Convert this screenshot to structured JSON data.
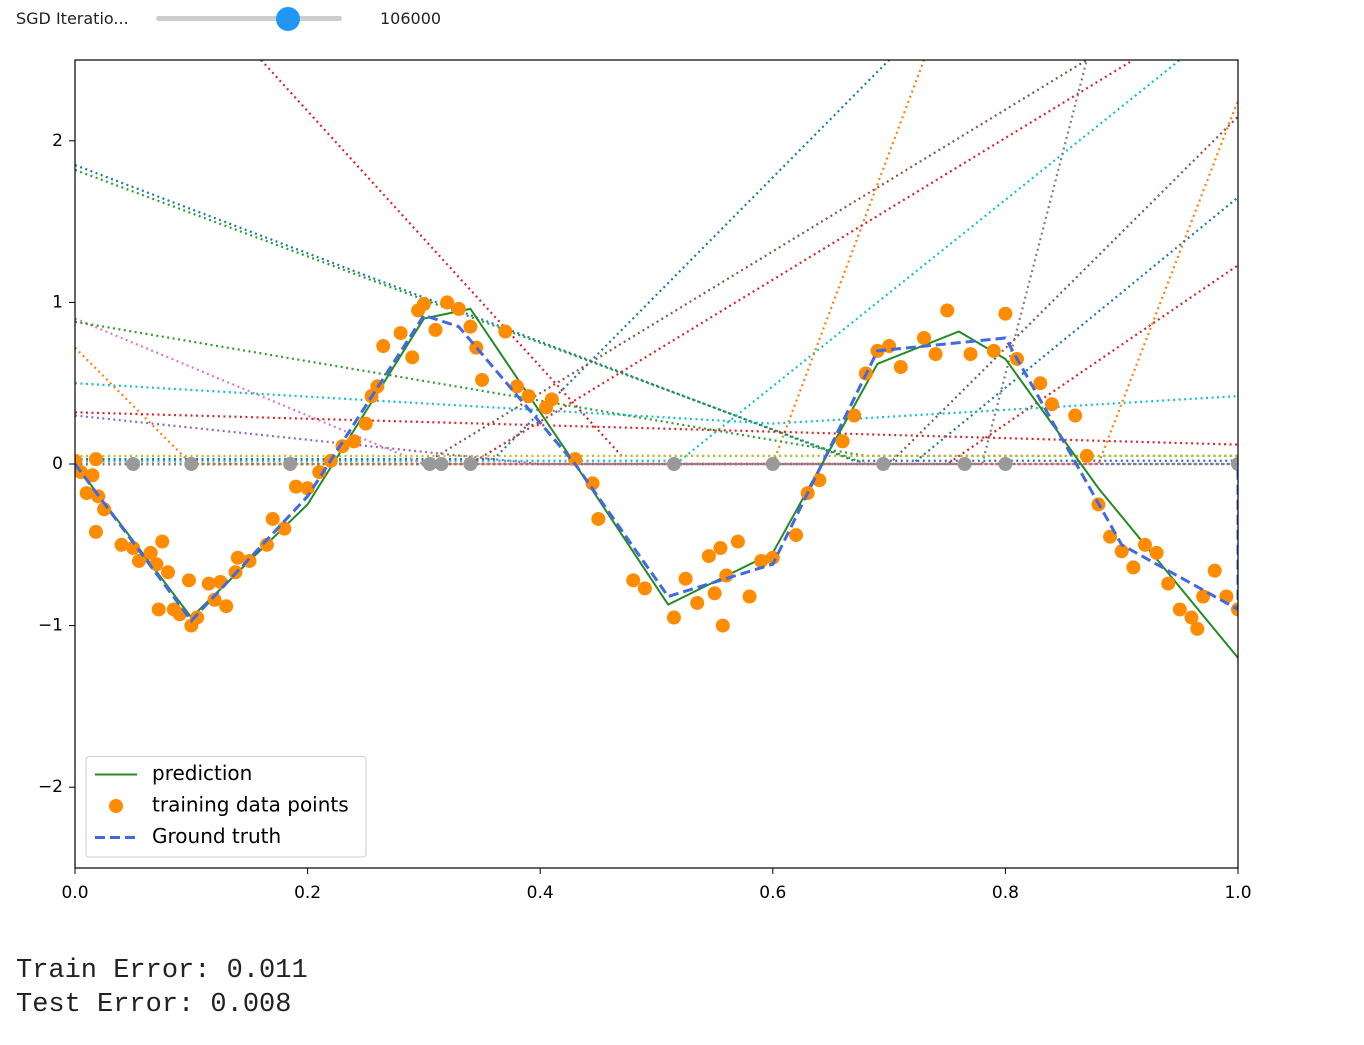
{
  "widget": {
    "label": "SGD Iteratio...",
    "value": 106000
  },
  "output": [
    "Train Error: 0.011",
    "Test Error: 0.008"
  ],
  "chart_data": {
    "type": "line",
    "xlim": [
      0,
      1
    ],
    "ylim": [
      -2.5,
      2.5
    ],
    "xticks": [
      {
        "value": 0,
        "label": "0.0"
      },
      {
        "value": 0.2,
        "label": "0.2"
      },
      {
        "value": 0.4,
        "label": "0.4"
      },
      {
        "value": 0.6,
        "label": "0.6"
      },
      {
        "value": 0.8,
        "label": "0.8"
      },
      {
        "value": 1,
        "label": "1.0"
      }
    ],
    "yticks": [
      {
        "value": -2,
        "label": "−2"
      },
      {
        "value": -1,
        "label": "−1"
      },
      0,
      1,
      2
    ],
    "grid": false,
    "legend": "lower left",
    "series": [
      {
        "color": "#1f77b4",
        "linestyle": "dotted",
        "x": [
          0,
          0.67,
          1
        ],
        "values": [
          1.85,
          0.02,
          0.02
        ]
      },
      {
        "color": "#2ca02c",
        "linestyle": "dotted",
        "x": [
          0,
          0.68,
          1
        ],
        "values": [
          1.82,
          0,
          0
        ]
      },
      {
        "color": "#d62728",
        "linestyle": "dotted",
        "x": [
          0.16,
          0.47,
          1
        ],
        "values": [
          2.5,
          0.05,
          0.05
        ]
      },
      {
        "color": "#17becf",
        "linestyle": "dotted",
        "x": [
          0,
          0.52,
          0.95
        ],
        "values": [
          0.02,
          0.02,
          2.5
        ]
      },
      {
        "color": "#1f77b4",
        "linestyle": "dotted",
        "x": [
          0,
          0.36,
          0.7
        ],
        "values": [
          0.03,
          0.03,
          2.5
        ]
      },
      {
        "color": "#ff7f0e",
        "linestyle": "dotted",
        "x": [
          0,
          0.6,
          0.73
        ],
        "values": [
          0,
          0,
          2.5
        ]
      },
      {
        "color": "#8c564b",
        "linestyle": "dotted",
        "x": [
          0,
          0.3,
          0.87
        ],
        "values": [
          0,
          0,
          2.5
        ]
      },
      {
        "color": "#d62728",
        "linestyle": "dotted",
        "x": [
          0,
          0.34,
          0.91
        ],
        "values": [
          0,
          0,
          2.5
        ]
      },
      {
        "color": "#8c564b",
        "linestyle": "dotted",
        "x": [
          0,
          0.7,
          1
        ],
        "values": [
          0,
          0,
          2.15
        ]
      },
      {
        "color": "#ff7f0e",
        "linestyle": "dotted",
        "x": [
          0,
          0.1,
          0.88,
          1
        ],
        "values": [
          0.72,
          0,
          0,
          2.25
        ]
      },
      {
        "color": "#1f77b4",
        "linestyle": "dotted",
        "x": [
          0,
          0.72,
          1
        ],
        "values": [
          0,
          0,
          1.65
        ]
      },
      {
        "color": "#d62728",
        "linestyle": "dotted",
        "x": [
          0,
          0.75,
          1
        ],
        "values": [
          0,
          0,
          1.23
        ]
      },
      {
        "color": "#e377c2",
        "linestyle": "dotted",
        "x": [
          0,
          0.3,
          1
        ],
        "values": [
          0.9,
          0,
          0
        ]
      },
      {
        "color": "#2ca02c",
        "linestyle": "dotted",
        "x": [
          0,
          0.68,
          1
        ],
        "values": [
          0.88,
          0.05,
          0.05
        ]
      },
      {
        "color": "#17becf",
        "linestyle": "dotted",
        "x": [
          0,
          0.6,
          1
        ],
        "values": [
          0.5,
          0.25,
          0.42
        ]
      },
      {
        "color": "#7f7f7f",
        "linestyle": "dotted",
        "x": [
          0,
          0.78,
          0.87
        ],
        "values": [
          0,
          0,
          2.5
        ]
      },
      {
        "color": "#bcbd22",
        "linestyle": "dotted",
        "x": [
          0,
          1
        ],
        "values": [
          0.05,
          0.05
        ]
      },
      {
        "color": "#9467bd",
        "linestyle": "dotted",
        "x": [
          0,
          0.4,
          1
        ],
        "values": [
          0.3,
          0,
          0
        ]
      },
      {
        "color": "#d62728",
        "linestyle": "dotted",
        "x": [
          0,
          1
        ],
        "values": [
          0.32,
          0.12
        ]
      },
      {
        "color": "#999999",
        "kind": "scatter",
        "x": [
          0.05,
          0.1,
          0.185,
          0.305,
          0.315,
          0.34,
          0.515,
          0.6,
          0.695,
          0.765,
          0.8,
          1.0
        ],
        "values": [
          0,
          0,
          0,
          0,
          0,
          0,
          0,
          0,
          0,
          0,
          0,
          0
        ]
      },
      {
        "name": "prediction",
        "color": "#228b22",
        "linestyle": "solid",
        "x": [
          0,
          0.1,
          0.2,
          0.3,
          0.34,
          0.43,
          0.51,
          0.6,
          0.69,
          0.76,
          0.8,
          0.88,
          1.0
        ],
        "values": [
          0,
          -0.95,
          -0.25,
          0.9,
          0.96,
          0,
          -0.87,
          -0.55,
          0.62,
          0.82,
          0.65,
          -0.15,
          -1.2
        ]
      },
      {
        "name": "training data points",
        "color": "#ff8c00",
        "kind": "scatter",
        "x": [
          0.0,
          0.005,
          0.01,
          0.015,
          0.018,
          0.02,
          0.025,
          0.018,
          0.04,
          0.05,
          0.055,
          0.065,
          0.07,
          0.075,
          0.08,
          0.072,
          0.085,
          0.098,
          0.1,
          0.105,
          0.115,
          0.12,
          0.125,
          0.13,
          0.138,
          0.14,
          0.15,
          0.165,
          0.17,
          0.18,
          0.19,
          0.2,
          0.21,
          0.22,
          0.23,
          0.24,
          0.25,
          0.255,
          0.26,
          0.265,
          0.28,
          0.29,
          0.295,
          0.3,
          0.31,
          0.32,
          0.33,
          0.34,
          0.345,
          0.35,
          0.37,
          0.38,
          0.39,
          0.405,
          0.41,
          0.43,
          0.445,
          0.45,
          0.48,
          0.49,
          0.515,
          0.525,
          0.535,
          0.545,
          0.55,
          0.555,
          0.56,
          0.57,
          0.58,
          0.59,
          0.6,
          0.62,
          0.63,
          0.64,
          0.66,
          0.67,
          0.68,
          0.69,
          0.7,
          0.71,
          0.73,
          0.74,
          0.75,
          0.77,
          0.79,
          0.8,
          0.81,
          0.83,
          0.84,
          0.86,
          0.87,
          0.88,
          0.89,
          0.9,
          0.91,
          0.92,
          0.93,
          0.94,
          0.95,
          0.96,
          0.97,
          0.965,
          0.98,
          0.99,
          1.0,
          0.557,
          0.09
        ],
        "values": [
          0.02,
          -0.05,
          -0.18,
          -0.07,
          0.03,
          -0.2,
          -0.28,
          -0.42,
          -0.5,
          -0.52,
          -0.6,
          -0.55,
          -0.62,
          -0.48,
          -0.67,
          -0.9,
          -0.9,
          -0.72,
          -1.0,
          -0.95,
          -0.74,
          -0.84,
          -0.73,
          -0.88,
          -0.67,
          -0.58,
          -0.6,
          -0.5,
          -0.34,
          -0.4,
          -0.14,
          -0.15,
          -0.05,
          0.02,
          0.11,
          0.14,
          0.25,
          0.42,
          0.48,
          0.73,
          0.81,
          0.66,
          0.95,
          0.99,
          0.83,
          1.0,
          0.96,
          0.85,
          0.72,
          0.52,
          0.82,
          0.48,
          0.42,
          0.35,
          0.4,
          0.03,
          -0.12,
          -0.34,
          -0.72,
          -0.77,
          -0.95,
          -0.71,
          -0.86,
          -0.57,
          -0.8,
          -0.52,
          -0.69,
          -0.48,
          -0.82,
          -0.6,
          -0.58,
          -0.44,
          -0.18,
          -0.1,
          0.14,
          0.3,
          0.56,
          0.7,
          0.73,
          0.6,
          0.78,
          0.68,
          0.95,
          0.68,
          0.7,
          0.93,
          0.65,
          0.5,
          0.37,
          0.3,
          0.05,
          -0.25,
          -0.45,
          -0.54,
          -0.64,
          -0.5,
          -0.55,
          -0.74,
          -0.9,
          -0.95,
          -0.82,
          -1.02,
          -0.66,
          -0.82,
          -0.9,
          -1.0,
          -0.93
        ]
      },
      {
        "name": "Ground truth",
        "color": "#4169e1",
        "linestyle": "dashed",
        "x": [
          0,
          0.1,
          0.2,
          0.3,
          0.33,
          0.43,
          0.51,
          0.6,
          0.69,
          0.8,
          0.9,
          1.0,
          1.0
        ],
        "values": [
          0,
          -0.97,
          -0.2,
          0.92,
          0.85,
          0,
          -0.82,
          -0.62,
          0.7,
          0.78,
          -0.5,
          -0.9,
          0
        ]
      }
    ]
  }
}
